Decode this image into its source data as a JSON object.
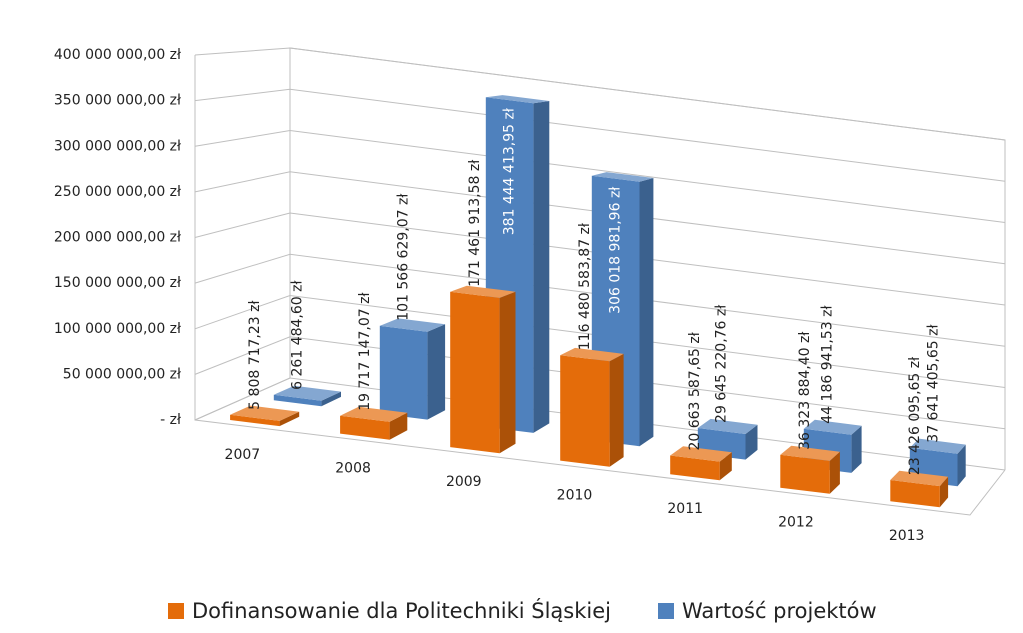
{
  "chart_data": {
    "type": "bar3d",
    "categories": [
      "2007",
      "2008",
      "2009",
      "2010",
      "2011",
      "2012",
      "2013"
    ],
    "series": [
      {
        "name": "Dofinansowanie dla Politechniki Śląskiej",
        "color": "#e46c0a",
        "values": [
          5808717.23,
          19717147.07,
          171461913.58,
          116480583.87,
          20663587.65,
          36323884.4,
          23426095.65
        ],
        "value_labels": [
          "5 808 717,23 zł",
          "19 717 147,07 zł",
          "171 461 913,58 zł",
          "116 480 583,87 zł",
          "20 663 587,65 zł",
          "36 323 884,40 zł",
          "23 426 095,65 zł"
        ]
      },
      {
        "name": "Wartość projektów",
        "color": "#4f81bd",
        "values": [
          6261484.6,
          101566629.07,
          381444413.95,
          306018981.96,
          29645220.76,
          44186941.53,
          37641405.65
        ],
        "value_labels": [
          "6 261 484,60 zł",
          "101 566 629,07 zł",
          "381 444 413,95 zł",
          "306 018 981,96 zł",
          "29 645 220,76 zł",
          "44 186 941,53 zł",
          "37 641 405,65 zł"
        ]
      }
    ],
    "ylim": [
      0,
      400000000
    ],
    "yticks": [
      {
        "value": 0,
        "label": "-   zł"
      },
      {
        "value": 50000000,
        "label": "50 000 000,00 zł"
      },
      {
        "value": 100000000,
        "label": "100 000 000,00 zł"
      },
      {
        "value": 150000000,
        "label": "150 000 000,00 zł"
      },
      {
        "value": 200000000,
        "label": "200 000 000,00 zł"
      },
      {
        "value": 250000000,
        "label": "250 000 000,00 zł"
      },
      {
        "value": 300000000,
        "label": "300 000 000,00 zł"
      },
      {
        "value": 350000000,
        "label": "350 000 000,00 zł"
      },
      {
        "value": 400000000,
        "label": "400 000 000,00 zł"
      }
    ],
    "grid": true,
    "legend": "bottom"
  }
}
